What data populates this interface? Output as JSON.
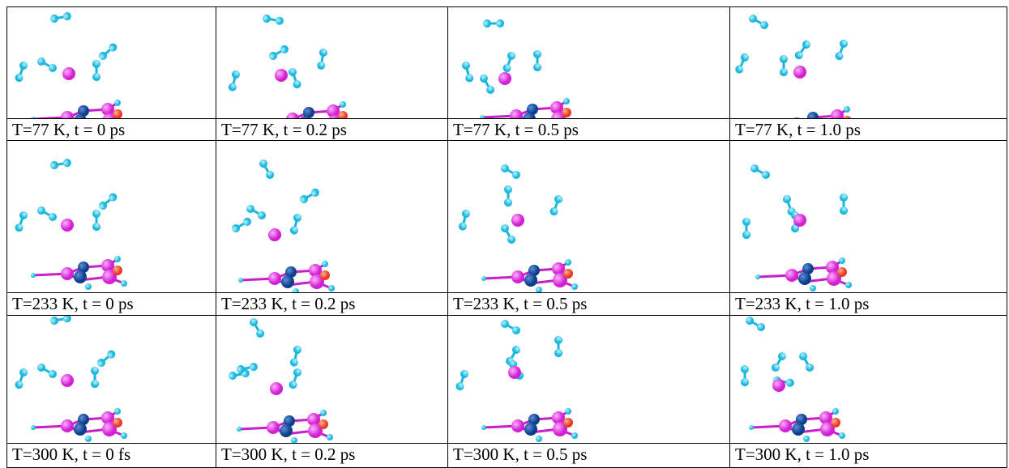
{
  "figure": {
    "rows": [
      [
        "T=77 K, t = 0 ps",
        "T=77 K, t = 0.2 ps",
        "T=77 K, t = 0.5 ps",
        "T=77 K, t = 1.0 ps"
      ],
      [
        "T=233 K, t = 0 ps",
        "T=233 K, t = 0.2 ps",
        "T=233 K, t = 0.5 ps",
        "T=233 K, t = 1.0 ps"
      ],
      [
        "T=300 K, t = 0 fs",
        "T=300 K, t = 0.2 ps",
        "T=300 K, t = 0.5 ps",
        "T=300 K, t = 1.0 ps"
      ]
    ]
  }
}
